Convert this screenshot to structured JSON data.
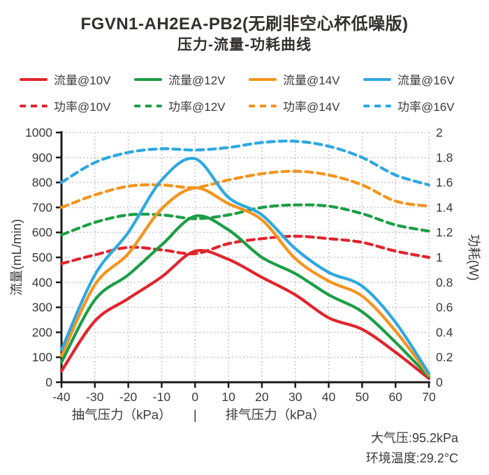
{
  "title": {
    "line1": "FGVN1-AH2EA-PB2(无刷非空心杯低噪版)",
    "line2": "压力-流量-功耗曲线"
  },
  "colors": {
    "red": "#e2242c",
    "green": "#1c9e45",
    "orange": "#f5941d",
    "blue": "#2da8e0",
    "grid": "#bcbcbc",
    "axis": "#1a1a1a",
    "text": "#3a3a3a"
  },
  "legend": [
    {
      "label": "流量@10V",
      "color": "#e2242c",
      "style": "solid"
    },
    {
      "label": "流量@12V",
      "color": "#1c9e45",
      "style": "solid"
    },
    {
      "label": "流量@14V",
      "color": "#f5941d",
      "style": "solid"
    },
    {
      "label": "流量@16V",
      "color": "#2da8e0",
      "style": "solid"
    },
    {
      "label": "功率@10V",
      "color": "#e2242c",
      "style": "dashed"
    },
    {
      "label": "功率@12V",
      "color": "#1c9e45",
      "style": "dashed"
    },
    {
      "label": "功率@14V",
      "color": "#f5941d",
      "style": "dashed"
    },
    {
      "label": "功率@16V",
      "color": "#2da8e0",
      "style": "dashed"
    }
  ],
  "chart_data": {
    "type": "line",
    "x": [
      -40,
      -30,
      -20,
      -10,
      0,
      10,
      20,
      30,
      40,
      50,
      60,
      70
    ],
    "x_ticks": [
      -40,
      -30,
      -20,
      -10,
      0,
      10,
      20,
      30,
      40,
      50,
      60,
      70
    ],
    "flow_axis": {
      "label": "流量(mL/min)",
      "min": 0,
      "max": 1000,
      "step": 100
    },
    "power_axis": {
      "label": "功耗(W)",
      "min": 0,
      "max": 2,
      "step": 0.2
    },
    "xaxis": {
      "left_label": "抽气压力（kPa）",
      "divider": "|",
      "right_label": "排气压力（kPa）"
    },
    "grid": true,
    "legend_position": "top",
    "series": [
      {
        "key": "flow-10v",
        "name": "流量@10V",
        "axis": "flow",
        "style": "solid",
        "color": "#e2242c",
        "values": [
          45,
          245,
          335,
          422,
          525,
          492,
          420,
          350,
          258,
          212,
          120,
          15
        ]
      },
      {
        "key": "flow-12v",
        "name": "流量@12V",
        "axis": "flow",
        "style": "solid",
        "color": "#1c9e45",
        "values": [
          80,
          330,
          430,
          550,
          665,
          610,
          500,
          435,
          350,
          282,
          160,
          22
        ]
      },
      {
        "key": "flow-14v",
        "name": "流量@14V",
        "axis": "flow",
        "style": "solid",
        "color": "#f5941d",
        "values": [
          105,
          390,
          515,
          695,
          778,
          715,
          650,
          495,
          405,
          345,
          205,
          28
        ]
      },
      {
        "key": "flow-16v",
        "name": "流量@16V",
        "axis": "flow",
        "style": "solid",
        "color": "#2da8e0",
        "values": [
          130,
          430,
          600,
          810,
          895,
          740,
          670,
          535,
          440,
          385,
          240,
          35
        ]
      },
      {
        "key": "power-10v",
        "name": "功率@10V",
        "axis": "power",
        "style": "dashed",
        "color": "#e2242c",
        "values": [
          0.95,
          1.02,
          1.08,
          1.06,
          1.03,
          1.11,
          1.15,
          1.17,
          1.15,
          1.12,
          1.05,
          1.0
        ]
      },
      {
        "key": "power-12v",
        "name": "功率@12V",
        "axis": "power",
        "style": "dashed",
        "color": "#1c9e45",
        "values": [
          1.18,
          1.28,
          1.34,
          1.34,
          1.31,
          1.34,
          1.4,
          1.42,
          1.41,
          1.35,
          1.26,
          1.21
        ]
      },
      {
        "key": "power-14v",
        "name": "功率@14V",
        "axis": "power",
        "style": "dashed",
        "color": "#f5941d",
        "values": [
          1.4,
          1.5,
          1.57,
          1.58,
          1.56,
          1.62,
          1.67,
          1.69,
          1.66,
          1.58,
          1.45,
          1.41
        ]
      },
      {
        "key": "power-16v",
        "name": "功率@16V",
        "axis": "power",
        "style": "dashed",
        "color": "#2da8e0",
        "values": [
          1.6,
          1.76,
          1.84,
          1.87,
          1.86,
          1.88,
          1.92,
          1.93,
          1.89,
          1.8,
          1.66,
          1.58
        ]
      }
    ]
  },
  "footer": {
    "pressure": "大气压:95.2kPa",
    "temperature": "环境温度:29.2°C"
  }
}
